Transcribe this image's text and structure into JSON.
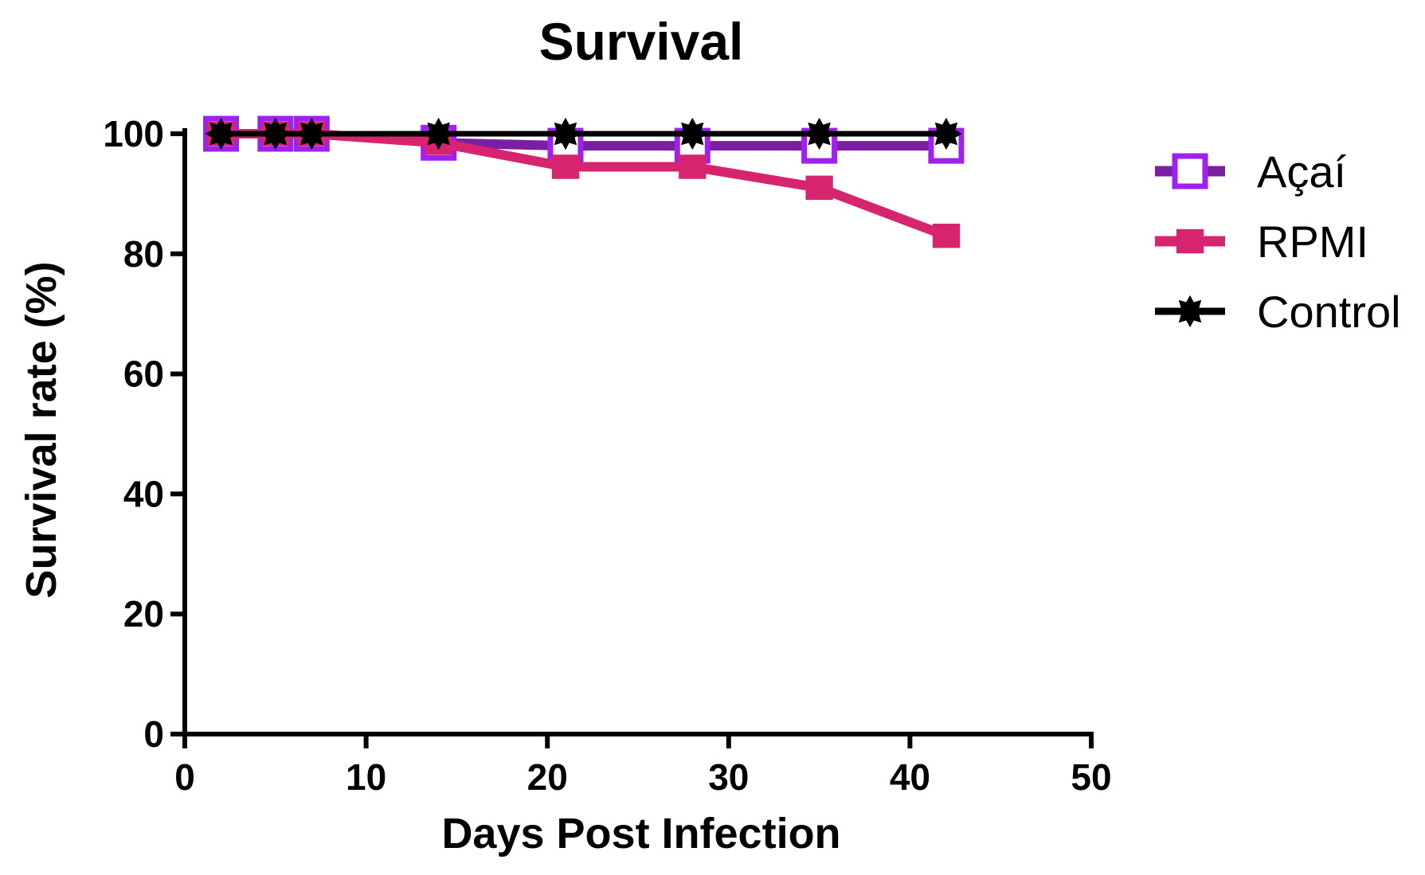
{
  "chart_data": {
    "type": "line",
    "title": "Survival",
    "xlabel": "Days Post Infection",
    "ylabel": "Survival rate (%)",
    "xlim": [
      0,
      50
    ],
    "ylim": [
      0,
      100
    ],
    "xticks": [
      0,
      10,
      20,
      30,
      40,
      50
    ],
    "yticks": [
      0,
      20,
      40,
      60,
      80,
      100
    ],
    "xtick_labels": [
      "0",
      "10",
      "20",
      "30",
      "40",
      "50"
    ],
    "ytick_labels": [
      "0",
      "20",
      "40",
      "60",
      "80",
      "100"
    ],
    "grid": false,
    "legend_position": "right",
    "series": [
      {
        "name": "Açaí",
        "color": "#7a1fa2",
        "marker_color": "#a020f0",
        "marker": "open-square",
        "x": [
          2,
          5,
          7,
          14,
          21,
          28,
          35,
          42
        ],
        "y": [
          100,
          100,
          100,
          98.5,
          98,
          98,
          98,
          98
        ]
      },
      {
        "name": "RPMI",
        "color": "#d6246e",
        "marker_color": "#d6246e",
        "marker": "filled-square",
        "x": [
          2,
          5,
          7,
          14,
          21,
          28,
          35,
          42
        ],
        "y": [
          100,
          100,
          100,
          98.5,
          94.5,
          94.5,
          91,
          83
        ]
      },
      {
        "name": "Control",
        "color": "#000000",
        "marker_color": "#000000",
        "marker": "filled-star",
        "x": [
          2,
          5,
          7,
          14,
          21,
          28,
          35,
          42
        ],
        "y": [
          100,
          100,
          100,
          100,
          100,
          100,
          100,
          100
        ]
      }
    ]
  }
}
